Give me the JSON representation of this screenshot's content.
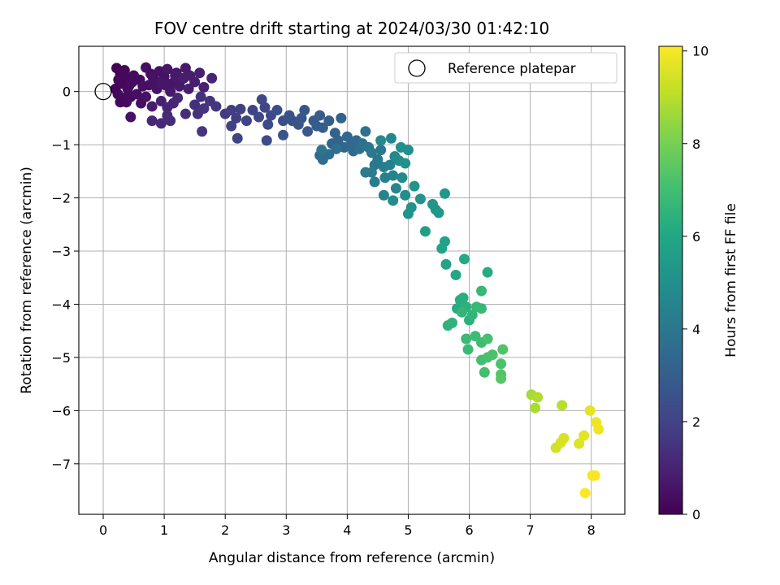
{
  "chart_data": {
    "type": "scatter",
    "title": "FOV centre drift starting at 2024/03/30 01:42:10",
    "xlabel": "Angular distance from reference (arcmin)",
    "ylabel": "Rotation from reference (arcmin)",
    "xlim": [
      -0.4,
      8.55
    ],
    "ylim": [
      -7.95,
      0.85
    ],
    "xticks": [
      0,
      1,
      2,
      3,
      4,
      5,
      6,
      7,
      8
    ],
    "yticks": [
      0,
      -1,
      -2,
      -3,
      -4,
      -5,
      -6,
      -7
    ],
    "grid": true,
    "legend": {
      "position": "top-right",
      "entries": [
        "Reference platepar"
      ]
    },
    "reference_point": {
      "x": 0,
      "y": 0,
      "label": "Reference platepar",
      "marker": "open-circle"
    },
    "colorbar": {
      "label": "Hours from first FF file",
      "range": [
        0,
        10.1
      ],
      "ticks": [
        0,
        2,
        4,
        6,
        8,
        10
      ],
      "colormap": "viridis"
    },
    "series": [
      {
        "points": [
          [
            0.22,
            0.44,
            0.1
          ],
          [
            0.28,
            0.32,
            0.1
          ],
          [
            0.35,
            0.4,
            0.2
          ],
          [
            0.42,
            0.1,
            0.2
          ],
          [
            0.5,
            0.3,
            0.3
          ],
          [
            0.6,
            0.22,
            0.3
          ],
          [
            0.7,
            0.45,
            0.4
          ],
          [
            0.78,
            0.33,
            0.4
          ],
          [
            0.85,
            0.2,
            0.4
          ],
          [
            0.92,
            0.38,
            0.5
          ],
          [
            1.0,
            0.28,
            0.5
          ],
          [
            1.05,
            0.42,
            0.6
          ],
          [
            1.12,
            0.15,
            0.6
          ],
          [
            1.2,
            0.35,
            0.6
          ],
          [
            1.28,
            0.22,
            0.7
          ],
          [
            1.35,
            0.44,
            0.7
          ],
          [
            1.42,
            0.3,
            0.8
          ],
          [
            1.5,
            0.18,
            0.8
          ],
          [
            1.58,
            0.35,
            0.9
          ],
          [
            1.65,
            0.08,
            0.9
          ],
          [
            1.78,
            0.25,
            1.0
          ],
          [
            0.2,
            0.05,
            0.1
          ],
          [
            0.24,
            -0.05,
            0.2
          ],
          [
            0.3,
            0.15,
            0.2
          ],
          [
            0.25,
            0.22,
            0.2
          ],
          [
            0.32,
            -0.12,
            0.3
          ],
          [
            0.38,
            -0.2,
            0.3
          ],
          [
            0.45,
            -0.1,
            0.3
          ],
          [
            0.4,
            0.05,
            0.3
          ],
          [
            0.55,
            -0.05,
            0.4
          ],
          [
            0.62,
            -0.22,
            0.4
          ],
          [
            0.7,
            -0.1,
            0.5
          ],
          [
            0.75,
            0.12,
            0.5
          ],
          [
            0.88,
            0.05,
            0.5
          ],
          [
            0.95,
            0.15,
            0.6
          ],
          [
            1.1,
            0.0,
            0.7
          ],
          [
            1.25,
            0.1,
            0.7
          ],
          [
            1.4,
            0.05,
            0.8
          ],
          [
            0.28,
            -0.2,
            0.2
          ],
          [
            0.35,
            0.28,
            0.2
          ],
          [
            0.48,
            0.18,
            0.3
          ],
          [
            0.65,
            0.1,
            0.4
          ],
          [
            0.82,
            0.25,
            0.5
          ],
          [
            1.02,
            0.12,
            0.6
          ],
          [
            1.18,
            0.3,
            0.7
          ],
          [
            1.32,
            0.25,
            0.8
          ],
          [
            0.45,
            -0.48,
            0.5
          ],
          [
            0.8,
            -0.28,
            0.8
          ],
          [
            0.95,
            -0.18,
            0.9
          ],
          [
            1.05,
            -0.3,
            1.0
          ],
          [
            1.15,
            -0.22,
            1.0
          ],
          [
            1.22,
            -0.12,
            1.1
          ],
          [
            0.8,
            -0.55,
            1.1
          ],
          [
            0.95,
            -0.6,
            1.2
          ],
          [
            1.05,
            -0.45,
            1.2
          ],
          [
            1.1,
            -0.55,
            1.3
          ],
          [
            1.35,
            -0.42,
            1.3
          ],
          [
            1.5,
            -0.25,
            1.4
          ],
          [
            1.55,
            -0.42,
            1.4
          ],
          [
            1.6,
            -0.1,
            1.4
          ],
          [
            1.65,
            -0.32,
            1.5
          ],
          [
            1.62,
            -0.75,
            1.5
          ],
          [
            1.75,
            -0.18,
            1.5
          ],
          [
            1.85,
            -0.28,
            1.6
          ],
          [
            2.0,
            -0.42,
            1.7
          ],
          [
            2.1,
            -0.35,
            1.8
          ],
          [
            2.18,
            -0.5,
            1.8
          ],
          [
            2.25,
            -0.33,
            1.9
          ],
          [
            2.1,
            -0.65,
            1.9
          ],
          [
            2.35,
            -0.55,
            2.0
          ],
          [
            2.45,
            -0.35,
            2.0
          ],
          [
            2.2,
            -0.88,
            2.0
          ],
          [
            2.55,
            -0.48,
            2.1
          ],
          [
            2.65,
            -0.3,
            2.1
          ],
          [
            2.6,
            -0.15,
            2.2
          ],
          [
            2.75,
            -0.45,
            2.2
          ],
          [
            2.7,
            -0.62,
            2.3
          ],
          [
            2.68,
            -0.92,
            2.3
          ],
          [
            2.85,
            -0.35,
            2.4
          ],
          [
            2.95,
            -0.55,
            2.4
          ],
          [
            3.05,
            -0.45,
            2.5
          ],
          [
            3.1,
            -0.55,
            2.5
          ],
          [
            2.95,
            -0.82,
            2.6
          ],
          [
            3.2,
            -0.62,
            2.6
          ],
          [
            3.25,
            -0.5,
            2.7
          ],
          [
            3.3,
            -0.35,
            2.7
          ],
          [
            3.35,
            -0.75,
            2.8
          ],
          [
            3.45,
            -0.55,
            2.8
          ],
          [
            3.55,
            -0.45,
            2.9
          ],
          [
            3.5,
            -0.65,
            2.9
          ],
          [
            3.6,
            -0.68,
            3.0
          ],
          [
            3.7,
            -0.55,
            3.0
          ],
          [
            3.8,
            -0.78,
            3.1
          ],
          [
            3.75,
            -0.98,
            3.1
          ],
          [
            3.85,
            -0.92,
            3.2
          ],
          [
            3.9,
            -0.5,
            3.2
          ],
          [
            3.95,
            -1.05,
            3.3
          ],
          [
            4.0,
            -0.85,
            3.3
          ],
          [
            4.05,
            -1.02,
            3.4
          ],
          [
            4.1,
            -1.12,
            3.4
          ],
          [
            4.15,
            -0.92,
            3.5
          ],
          [
            3.55,
            -1.2,
            3.5
          ],
          [
            3.6,
            -1.28,
            3.6
          ],
          [
            3.7,
            -1.18,
            3.6
          ],
          [
            3.82,
            -1.08,
            3.7
          ],
          [
            4.2,
            -1.08,
            3.7
          ],
          [
            4.25,
            -0.98,
            3.8
          ],
          [
            4.3,
            -0.75,
            3.8
          ],
          [
            4.35,
            -1.05,
            3.9
          ],
          [
            3.58,
            -1.1,
            3.9
          ],
          [
            4.4,
            -1.15,
            4.0
          ],
          [
            4.45,
            -1.38,
            4.0
          ],
          [
            4.5,
            -1.28,
            4.1
          ],
          [
            4.55,
            -1.1,
            4.1
          ],
          [
            4.3,
            -1.52,
            4.2
          ],
          [
            4.4,
            -1.52,
            4.2
          ],
          [
            4.45,
            -1.7,
            4.3
          ],
          [
            4.6,
            -1.42,
            4.3
          ],
          [
            4.62,
            -1.62,
            4.4
          ],
          [
            4.7,
            -1.38,
            4.4
          ],
          [
            4.6,
            -1.95,
            4.5
          ],
          [
            4.75,
            -1.58,
            4.5
          ],
          [
            4.8,
            -1.82,
            4.6
          ],
          [
            4.72,
            -0.88,
            4.6
          ],
          [
            4.55,
            -0.92,
            4.7
          ],
          [
            4.78,
            -1.22,
            4.7
          ],
          [
            4.85,
            -1.3,
            4.8
          ],
          [
            4.9,
            -1.62,
            4.8
          ],
          [
            4.95,
            -1.95,
            4.9
          ],
          [
            4.75,
            -2.05,
            4.9
          ],
          [
            4.88,
            -1.05,
            5.0
          ],
          [
            5.0,
            -1.1,
            5.0
          ],
          [
            4.95,
            -1.35,
            5.0
          ],
          [
            5.0,
            -2.3,
            5.1
          ],
          [
            5.05,
            -2.18,
            5.1
          ],
          [
            5.1,
            -1.78,
            5.2
          ],
          [
            5.2,
            -2.02,
            5.2
          ],
          [
            5.4,
            -2.12,
            5.3
          ],
          [
            5.45,
            -2.22,
            5.3
          ],
          [
            5.5,
            -2.28,
            5.4
          ],
          [
            5.6,
            -1.92,
            5.4
          ],
          [
            5.28,
            -2.63,
            5.6
          ],
          [
            5.55,
            -2.95,
            5.8
          ],
          [
            5.6,
            -2.82,
            5.8
          ],
          [
            5.62,
            -3.25,
            5.9
          ],
          [
            5.78,
            -3.45,
            6.0
          ],
          [
            5.92,
            -3.15,
            6.1
          ],
          [
            6.3,
            -3.4,
            6.2
          ],
          [
            5.8,
            -4.08,
            6.2
          ],
          [
            5.85,
            -3.92,
            6.3
          ],
          [
            5.9,
            -3.88,
            6.3
          ],
          [
            5.95,
            -4.05,
            6.4
          ],
          [
            6.0,
            -4.3,
            6.4
          ],
          [
            5.65,
            -4.4,
            6.5
          ],
          [
            5.72,
            -4.35,
            6.5
          ],
          [
            5.88,
            -4.15,
            6.6
          ],
          [
            6.05,
            -4.2,
            6.6
          ],
          [
            6.12,
            -4.05,
            6.7
          ],
          [
            6.2,
            -3.75,
            6.7
          ],
          [
            6.2,
            -4.08,
            6.7
          ],
          [
            5.95,
            -4.65,
            6.8
          ],
          [
            5.98,
            -4.85,
            6.8
          ],
          [
            6.1,
            -4.6,
            6.9
          ],
          [
            6.2,
            -4.72,
            6.9
          ],
          [
            6.2,
            -5.05,
            7.0
          ],
          [
            6.25,
            -5.28,
            7.0
          ],
          [
            6.3,
            -5.0,
            7.1
          ],
          [
            6.3,
            -4.65,
            7.1
          ],
          [
            6.38,
            -4.95,
            7.2
          ],
          [
            6.52,
            -5.12,
            7.2
          ],
          [
            6.55,
            -4.85,
            7.3
          ],
          [
            6.52,
            -5.32,
            7.3
          ],
          [
            6.52,
            -5.4,
            7.4
          ],
          [
            7.02,
            -5.7,
            8.7
          ],
          [
            7.08,
            -5.95,
            8.8
          ],
          [
            7.12,
            -5.75,
            8.9
          ],
          [
            7.52,
            -5.9,
            9.0
          ],
          [
            7.42,
            -6.7,
            9.4
          ],
          [
            7.5,
            -6.6,
            9.5
          ],
          [
            7.55,
            -6.52,
            9.5
          ],
          [
            7.8,
            -6.62,
            9.6
          ],
          [
            7.88,
            -6.47,
            9.7
          ],
          [
            7.98,
            -6.0,
            9.7
          ],
          [
            8.08,
            -6.22,
            9.8
          ],
          [
            8.12,
            -6.35,
            9.9
          ],
          [
            8.02,
            -7.22,
            10.0
          ],
          [
            8.06,
            -7.22,
            10.0
          ],
          [
            7.9,
            -7.55,
            10.1
          ]
        ]
      }
    ]
  }
}
